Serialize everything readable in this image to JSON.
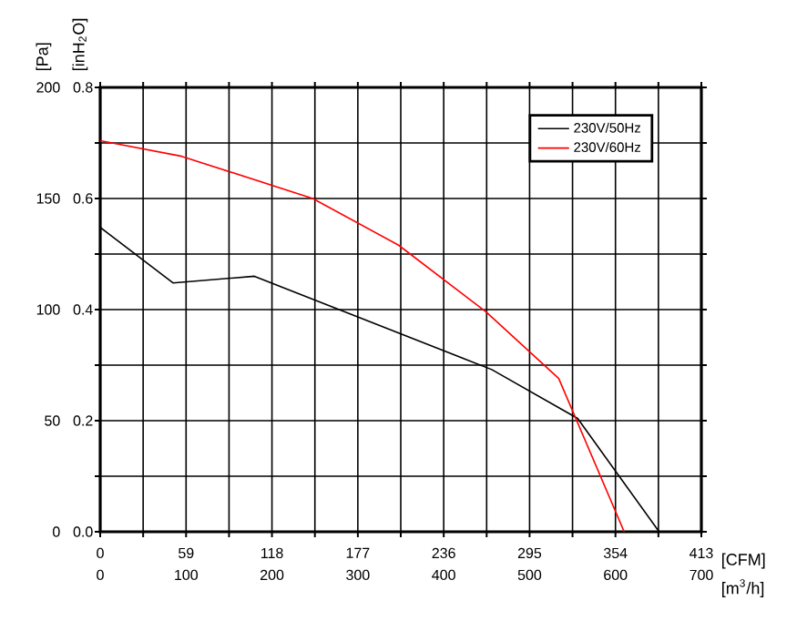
{
  "chart_data": {
    "type": "line",
    "xlabel": "[CFM]",
    "ylabel": "[Pa]",
    "y2label": "[inH$_{2}$O]",
    "x2label": "[m$^{3}$/h]",
    "xlim": [
      0,
      413
    ],
    "xticks": [
      0,
      {
        "value": 29.5,
        "label": null
      },
      59,
      {
        "value": 88.5,
        "label": null
      },
      118,
      {
        "value": 147.5,
        "label": null
      },
      177,
      {
        "value": 206.5,
        "label": null
      },
      236,
      {
        "value": 265.5,
        "label": null
      },
      295,
      {
        "value": 324.5,
        "label": null
      },
      354,
      {
        "value": 383.5,
        "label": null
      },
      413
    ],
    "ylim": [
      0,
      200
    ],
    "yticks": [
      0,
      {
        "value": 25,
        "label": null
      },
      50,
      {
        "value": 75,
        "label": null
      },
      100,
      {
        "value": 125,
        "label": null
      },
      150,
      {
        "value": 175,
        "label": null
      },
      200
    ],
    "y2lim": [
      0,
      0.8
    ],
    "y2ticks": [
      {
        "value": 0,
        "label": "0.0"
      },
      0.2,
      0.4,
      0.6,
      0.8
    ],
    "x2lim": [
      0,
      700
    ],
    "x2ticks": [
      0,
      100,
      200,
      300,
      400,
      500,
      600,
      700
    ],
    "grid": true,
    "legend": "top right",
    "marker": "none",
    "line_style": "solid",
    "series": [
      {
        "name": "230V/50Hz",
        "color": "#000000",
        "x": [
          0,
          50,
          106,
          269,
          328,
          384
        ],
        "values": [
          137,
          112,
          115,
          73,
          51,
          0
        ]
      },
      {
        "name": "230V/60Hz",
        "color": "#ff0000",
        "x": [
          0,
          56,
          146,
          205,
          265,
          315,
          360
        ],
        "values": [
          176,
          169,
          150,
          129,
          99,
          69,
          0
        ]
      }
    ]
  }
}
